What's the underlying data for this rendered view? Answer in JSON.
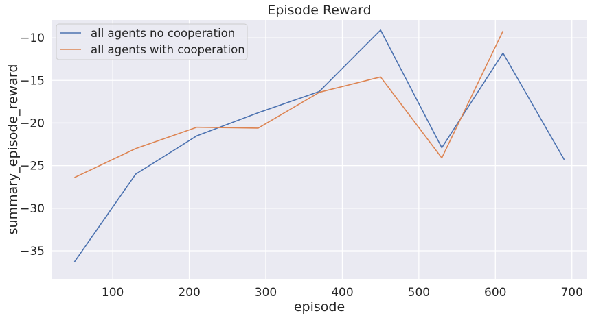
{
  "chart_data": {
    "type": "line",
    "title": "Episode Reward",
    "xlabel": "episode",
    "ylabel": "summary_episode_reward",
    "xlim": [
      20,
      720
    ],
    "ylim": [
      -38.3,
      -7.9
    ],
    "xticks": [
      100,
      200,
      300,
      400,
      500,
      600,
      700
    ],
    "yticks": [
      -35,
      -30,
      -25,
      -20,
      -15,
      -10
    ],
    "grid": true,
    "legend_position": "top-left",
    "background": "#eaeaf2",
    "series": [
      {
        "name": "all agents no cooperation",
        "color": "#4c72b0",
        "x": [
          50,
          130,
          210,
          290,
          370,
          450,
          530,
          610,
          690
        ],
        "y": [
          -36.3,
          -26.0,
          -21.5,
          -18.8,
          -16.3,
          -9.1,
          -22.9,
          -11.8,
          -24.3
        ]
      },
      {
        "name": "all agents with cooperation",
        "color": "#dd8452",
        "x": [
          50,
          130,
          210,
          290,
          370,
          450,
          530,
          610
        ],
        "y": [
          -26.4,
          -23.0,
          -20.5,
          -20.6,
          -16.4,
          -14.6,
          -24.1,
          -9.2
        ]
      }
    ]
  }
}
